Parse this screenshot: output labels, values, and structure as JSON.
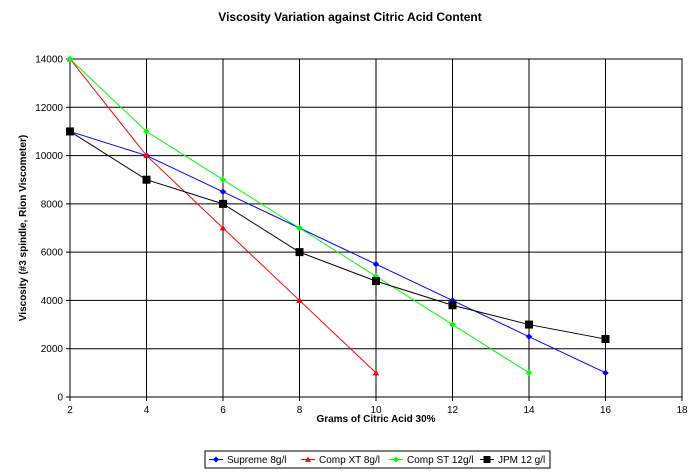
{
  "chart_data": {
    "type": "line",
    "title": "Viscosity Variation against Citric Acid Content",
    "xlabel": "Grams of Citric Acid 30%",
    "ylabel": "Viscosity (#3 spindle, Rion Viscometer)",
    "xlim": [
      2,
      18
    ],
    "ylim": [
      0,
      14000
    ],
    "x_ticks": [
      2,
      4,
      6,
      8,
      10,
      12,
      14,
      16,
      18
    ],
    "y_ticks": [
      0,
      2000,
      4000,
      6000,
      8000,
      10000,
      12000,
      14000
    ],
    "grid": true,
    "legend_position": "bottom",
    "series": [
      {
        "name": "Supreme 8g/l",
        "color": "#0000ff",
        "marker": "diamond",
        "x": [
          2,
          4,
          6,
          8,
          10,
          12,
          14,
          16
        ],
        "y": [
          11000,
          10000,
          8500,
          7000,
          5500,
          4000,
          2500,
          1000
        ]
      },
      {
        "name": "Comp XT 8g/l",
        "color": "#ff0000",
        "marker": "triangle",
        "x": [
          2,
          4,
          6,
          8,
          10
        ],
        "y": [
          14000,
          10000,
          7000,
          4000,
          1000
        ]
      },
      {
        "name": "Comp ST 12g/l",
        "color": "#00ff00",
        "marker": "diamond",
        "x": [
          2,
          4,
          6,
          8,
          10,
          12,
          14
        ],
        "y": [
          14000,
          11000,
          9000,
          7000,
          5000,
          3000,
          1000
        ]
      },
      {
        "name": "JPM 12 g/l",
        "color": "#000000",
        "marker": "square",
        "x": [
          2,
          4,
          6,
          8,
          10,
          12,
          14,
          16
        ],
        "y": [
          11000,
          9000,
          8000,
          6000,
          4800,
          3800,
          3000,
          2400
        ]
      }
    ]
  }
}
